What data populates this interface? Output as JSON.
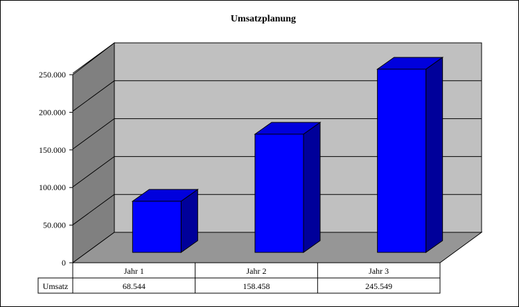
{
  "chart_data": {
    "type": "bar",
    "title": "Umsatzplanung",
    "categories": [
      "Jahr 1",
      "Jahr 2",
      "Jahr 3"
    ],
    "series": [
      {
        "name": "Umsatz",
        "values": [
          68544,
          158458,
          245549
        ]
      }
    ],
    "data_table": {
      "row_label": "Umsatz",
      "values": [
        "68.544",
        "158.458",
        "245.549"
      ]
    },
    "ylim": [
      0,
      250000
    ],
    "yticks": [
      0,
      50000,
      100000,
      150000,
      200000,
      250000
    ],
    "ytick_labels": [
      "0",
      "50.000",
      "100.000",
      "150.000",
      "200.000",
      "250.000"
    ],
    "grid": true,
    "legend": "none",
    "colors": {
      "bar_front": "#0000ff",
      "bar_top": "#0000dd",
      "bar_side": "#00009a",
      "back_wall": "#c0c0c0",
      "side_wall": "#808080",
      "floor": "#969696"
    }
  }
}
